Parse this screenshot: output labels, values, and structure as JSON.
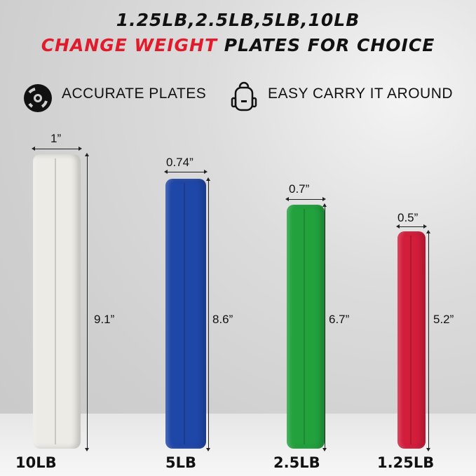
{
  "title": {
    "line1": "1.25LB,2.5LB,5LB,10LB",
    "line2_accent": "CHANGE WEIGHT",
    "line2_rest": " PLATES FOR CHOICE",
    "accent_color": "#e21b2c"
  },
  "features": [
    {
      "icon": "weight-plate-icon",
      "label": "ACCURATE PLATES"
    },
    {
      "icon": "backpack-icon",
      "label": "EASY CARRY IT AROUND"
    }
  ],
  "plates": [
    {
      "weight": "10LB",
      "thickness": "1”",
      "diameter": "9.1”",
      "color": "#ecebe6"
    },
    {
      "weight": "5LB",
      "thickness": "0.74”",
      "diameter": "8.6”",
      "color": "#1f47a8"
    },
    {
      "weight": "2.5LB",
      "thickness": "0.7”",
      "diameter": "6.7”",
      "color": "#22a13d"
    },
    {
      "weight": "1.25LB",
      "thickness": "0.5”",
      "diameter": "5.2”",
      "color": "#d21d3b"
    }
  ]
}
